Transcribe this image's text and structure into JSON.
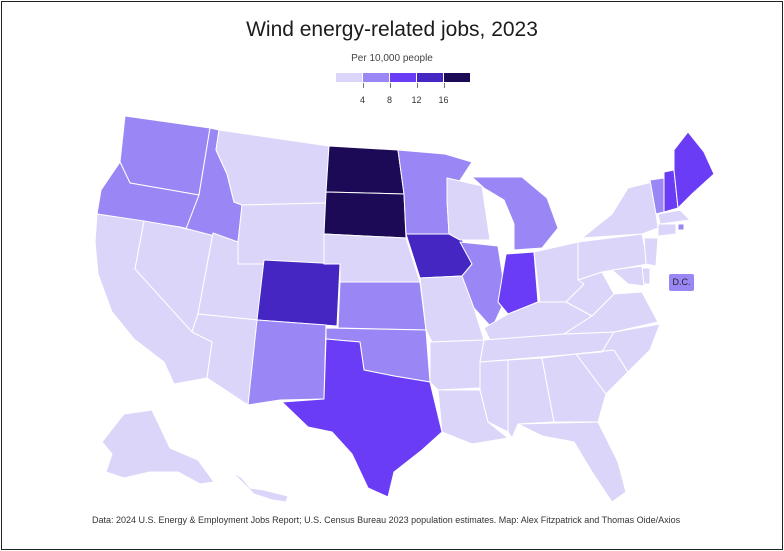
{
  "title": "Wind energy-related jobs, 2023",
  "subtitle": "Per 10,000 people",
  "legend": {
    "colors": [
      "#dcd5fa",
      "#9b86f5",
      "#6a3cf6",
      "#4526c2",
      "#1c0a56"
    ],
    "ticks": [
      "4",
      "8",
      "12",
      "16"
    ]
  },
  "tiers": {
    "t1": "#dcd5fa",
    "t2": "#9b86f5",
    "t3": "#6a3cf6",
    "t4": "#4526c2",
    "t5": "#1c0a56"
  },
  "states": [
    {
      "code": "WA",
      "tier": "t2"
    },
    {
      "code": "OR",
      "tier": "t2"
    },
    {
      "code": "CA",
      "tier": "t1"
    },
    {
      "code": "NV",
      "tier": "t1"
    },
    {
      "code": "ID",
      "tier": "t2"
    },
    {
      "code": "MT",
      "tier": "t1"
    },
    {
      "code": "WY",
      "tier": "t1"
    },
    {
      "code": "UT",
      "tier": "t1"
    },
    {
      "code": "AZ",
      "tier": "t1"
    },
    {
      "code": "CO",
      "tier": "t4"
    },
    {
      "code": "NM",
      "tier": "t2"
    },
    {
      "code": "ND",
      "tier": "t5"
    },
    {
      "code": "SD",
      "tier": "t5"
    },
    {
      "code": "NE",
      "tier": "t1"
    },
    {
      "code": "KS",
      "tier": "t2"
    },
    {
      "code": "OK",
      "tier": "t2"
    },
    {
      "code": "TX",
      "tier": "t3"
    },
    {
      "code": "MN",
      "tier": "t2"
    },
    {
      "code": "IA",
      "tier": "t4"
    },
    {
      "code": "MO",
      "tier": "t1"
    },
    {
      "code": "AR",
      "tier": "t1"
    },
    {
      "code": "LA",
      "tier": "t1"
    },
    {
      "code": "WI",
      "tier": "t1"
    },
    {
      "code": "IL",
      "tier": "t2"
    },
    {
      "code": "MI",
      "tier": "t2"
    },
    {
      "code": "IN",
      "tier": "t3"
    },
    {
      "code": "OH",
      "tier": "t1"
    },
    {
      "code": "KY",
      "tier": "t1"
    },
    {
      "code": "TN",
      "tier": "t1"
    },
    {
      "code": "MS",
      "tier": "t1"
    },
    {
      "code": "AL",
      "tier": "t1"
    },
    {
      "code": "GA",
      "tier": "t1"
    },
    {
      "code": "FL",
      "tier": "t1"
    },
    {
      "code": "SC",
      "tier": "t1"
    },
    {
      "code": "NC",
      "tier": "t1"
    },
    {
      "code": "VA",
      "tier": "t1"
    },
    {
      "code": "WV",
      "tier": "t1"
    },
    {
      "code": "PA",
      "tier": "t1"
    },
    {
      "code": "NY",
      "tier": "t1"
    },
    {
      "code": "VT",
      "tier": "t2"
    },
    {
      "code": "NH",
      "tier": "t3"
    },
    {
      "code": "ME",
      "tier": "t3"
    },
    {
      "code": "MA",
      "tier": "t1"
    },
    {
      "code": "RI",
      "tier": "t2"
    },
    {
      "code": "CT",
      "tier": "t1"
    },
    {
      "code": "NJ",
      "tier": "t1"
    },
    {
      "code": "DE",
      "tier": "t1"
    },
    {
      "code": "MD",
      "tier": "t1"
    },
    {
      "code": "AK",
      "tier": "t1"
    },
    {
      "code": "HI",
      "tier": "t1"
    }
  ],
  "dc": {
    "label": "D.C.",
    "tier": "t2"
  },
  "source": "Data: 2024 U.S. Energy & Employment Jobs Report; U.S. Census Bureau 2023 population estimates. Map: Alex Fitzpatrick and Thomas Oide/Axios"
}
